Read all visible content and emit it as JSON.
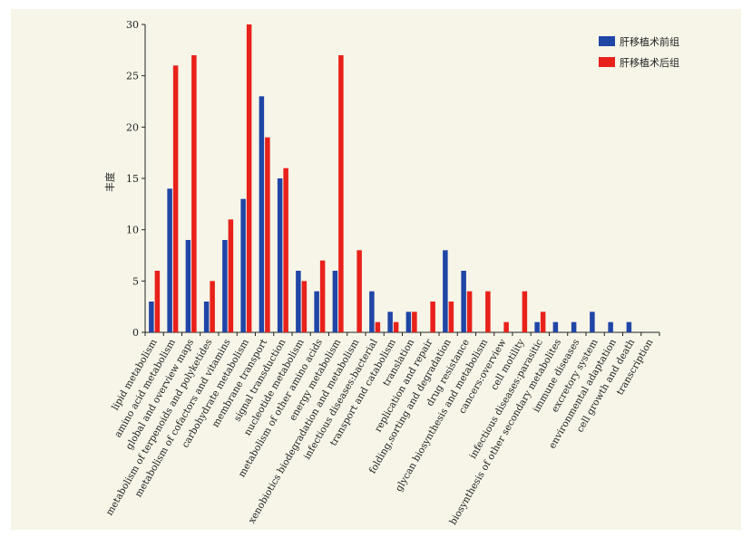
{
  "chart_data": {
    "type": "bar",
    "ylabel": "丰度",
    "xlabel": "",
    "ylim": [
      0,
      30
    ],
    "yticks": [
      0,
      5,
      10,
      15,
      20,
      25,
      30
    ],
    "legend_position": "top-right",
    "categories": [
      "lipid metabolism",
      "amino acid metabolism",
      "global and overview maps",
      "metabolism of terpenoids and polyketides",
      "metabolism of cofactors and vitamins",
      "carbohydrate metabolism",
      "membrane transport",
      "signal transduction",
      "nucleotide metabolism",
      "metabolism of other amino acids",
      "energy metabolism",
      "xenobiotics biodegradation and metabolism",
      "infectious diseases:bacterial",
      "transport and catabolism",
      "translation",
      "replication and repair",
      "folding,sorting and degradation",
      "drug resistance",
      "glycan biosynthesis and metabolism",
      "cancers:overview",
      "cell motility",
      "infectious diseases:parasitic",
      "biosynthesis of other secondary metabolites",
      "immune diseases",
      "excretory system",
      "environmental adaptation",
      "cell growth and death",
      "transcription"
    ],
    "series": [
      {
        "name": "肝移植术前组",
        "color": "#1f45a6",
        "values": [
          3,
          14,
          9,
          3,
          9,
          13,
          23,
          15,
          6,
          4,
          6,
          0,
          4,
          2,
          2,
          0,
          8,
          6,
          0,
          0,
          0,
          1,
          1,
          1,
          2,
          1,
          1,
          0
        ]
      },
      {
        "name": "肝移植术后组",
        "color": "#e8211b",
        "values": [
          6,
          26,
          27,
          5,
          11,
          30,
          19,
          16,
          5,
          7,
          27,
          8,
          1,
          1,
          2,
          3,
          3,
          4,
          4,
          1,
          4,
          2,
          0,
          0,
          0,
          0,
          0,
          0
        ]
      }
    ]
  }
}
